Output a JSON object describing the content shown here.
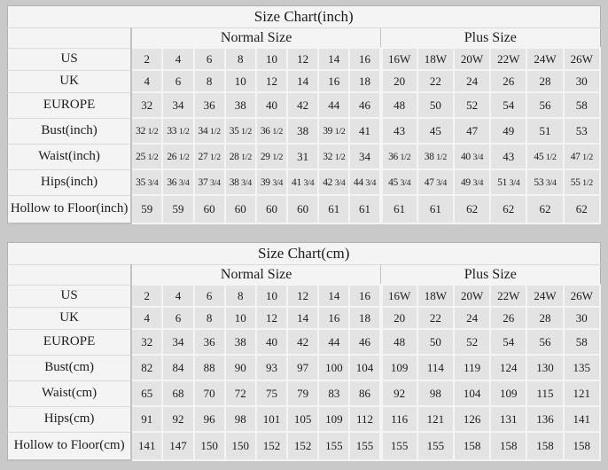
{
  "colors": {
    "page_bg": "#c9c9c9",
    "panel_bg": "#f4f4f4",
    "cell_bg": "#e3e3e3",
    "grid_line": "#c2c2c2",
    "text": "#1c1c1c"
  },
  "tables": [
    {
      "title": "Size Chart(inch)",
      "group_headers": {
        "normal": "Normal Size",
        "plus": "Plus Size"
      },
      "rows": [
        {
          "label": "US",
          "normal": [
            "2",
            "4",
            "6",
            "8",
            "10",
            "12",
            "14",
            "16"
          ],
          "plus": [
            "16W",
            "18W",
            "20W",
            "22W",
            "24W",
            "26W"
          ]
        },
        {
          "label": "UK",
          "normal": [
            "4",
            "6",
            "8",
            "10",
            "12",
            "14",
            "16",
            "18"
          ],
          "plus": [
            "20",
            "22",
            "24",
            "26",
            "28",
            "30"
          ]
        },
        {
          "label": "EUROPE",
          "normal": [
            "32",
            "34",
            "36",
            "38",
            "40",
            "42",
            "44",
            "46"
          ],
          "plus": [
            "48",
            "50",
            "52",
            "54",
            "56",
            "58"
          ]
        },
        {
          "label": "Bust(inch)",
          "normal": [
            "32 1/2",
            "33 1/2",
            "34 1/2",
            "35 1/2",
            "36 1/2",
            "38",
            "39 1/2",
            "41"
          ],
          "plus": [
            "43",
            "45",
            "47",
            "49",
            "51",
            "53"
          ]
        },
        {
          "label": "Waist(inch)",
          "normal": [
            "25 1/2",
            "26 1/2",
            "27 1/2",
            "28 1/2",
            "29 1/2",
            "31",
            "32 1/2",
            "34"
          ],
          "plus": [
            "36 1/2",
            "38 1/2",
            "40 3/4",
            "43",
            "45 1/2",
            "47 1/2"
          ]
        },
        {
          "label": "Hips(inch)",
          "normal": [
            "35 3/4",
            "36 3/4",
            "37 3/4",
            "38 3/4",
            "39 3/4",
            "41 3/4",
            "42 3/4",
            "44 3/4"
          ],
          "plus": [
            "45 3/4",
            "47 3/4",
            "49 3/4",
            "51 3/4",
            "53 3/4",
            "55 1/2"
          ]
        },
        {
          "label": "Hollow to Floor(inch)",
          "normal": [
            "59",
            "59",
            "60",
            "60",
            "60",
            "60",
            "61",
            "61"
          ],
          "plus": [
            "61",
            "61",
            "62",
            "62",
            "62",
            "62"
          ]
        }
      ]
    },
    {
      "title": "Size Chart(cm)",
      "group_headers": {
        "normal": "Normal Size",
        "plus": "Plus Size"
      },
      "rows": [
        {
          "label": "US",
          "normal": [
            "2",
            "4",
            "6",
            "8",
            "10",
            "12",
            "14",
            "16"
          ],
          "plus": [
            "16W",
            "18W",
            "20W",
            "22W",
            "24W",
            "26W"
          ]
        },
        {
          "label": "UK",
          "normal": [
            "4",
            "6",
            "8",
            "10",
            "12",
            "14",
            "16",
            "18"
          ],
          "plus": [
            "20",
            "22",
            "24",
            "26",
            "28",
            "30"
          ]
        },
        {
          "label": "EUROPE",
          "normal": [
            "32",
            "34",
            "36",
            "38",
            "40",
            "42",
            "44",
            "46"
          ],
          "plus": [
            "48",
            "50",
            "52",
            "54",
            "56",
            "58"
          ]
        },
        {
          "label": "Bust(cm)",
          "normal": [
            "82",
            "84",
            "88",
            "90",
            "93",
            "97",
            "100",
            "104"
          ],
          "plus": [
            "109",
            "114",
            "119",
            "124",
            "130",
            "135"
          ]
        },
        {
          "label": "Waist(cm)",
          "normal": [
            "65",
            "68",
            "70",
            "72",
            "75",
            "79",
            "83",
            "86"
          ],
          "plus": [
            "92",
            "98",
            "104",
            "109",
            "115",
            "121"
          ]
        },
        {
          "label": "Hips(cm)",
          "normal": [
            "91",
            "92",
            "96",
            "98",
            "101",
            "105",
            "109",
            "112"
          ],
          "plus": [
            "116",
            "121",
            "126",
            "131",
            "136",
            "141"
          ]
        },
        {
          "label": "Hollow to Floor(cm)",
          "normal": [
            "141",
            "147",
            "150",
            "150",
            "152",
            "152",
            "155",
            "155"
          ],
          "plus": [
            "155",
            "155",
            "158",
            "158",
            "158",
            "158"
          ]
        }
      ]
    }
  ]
}
